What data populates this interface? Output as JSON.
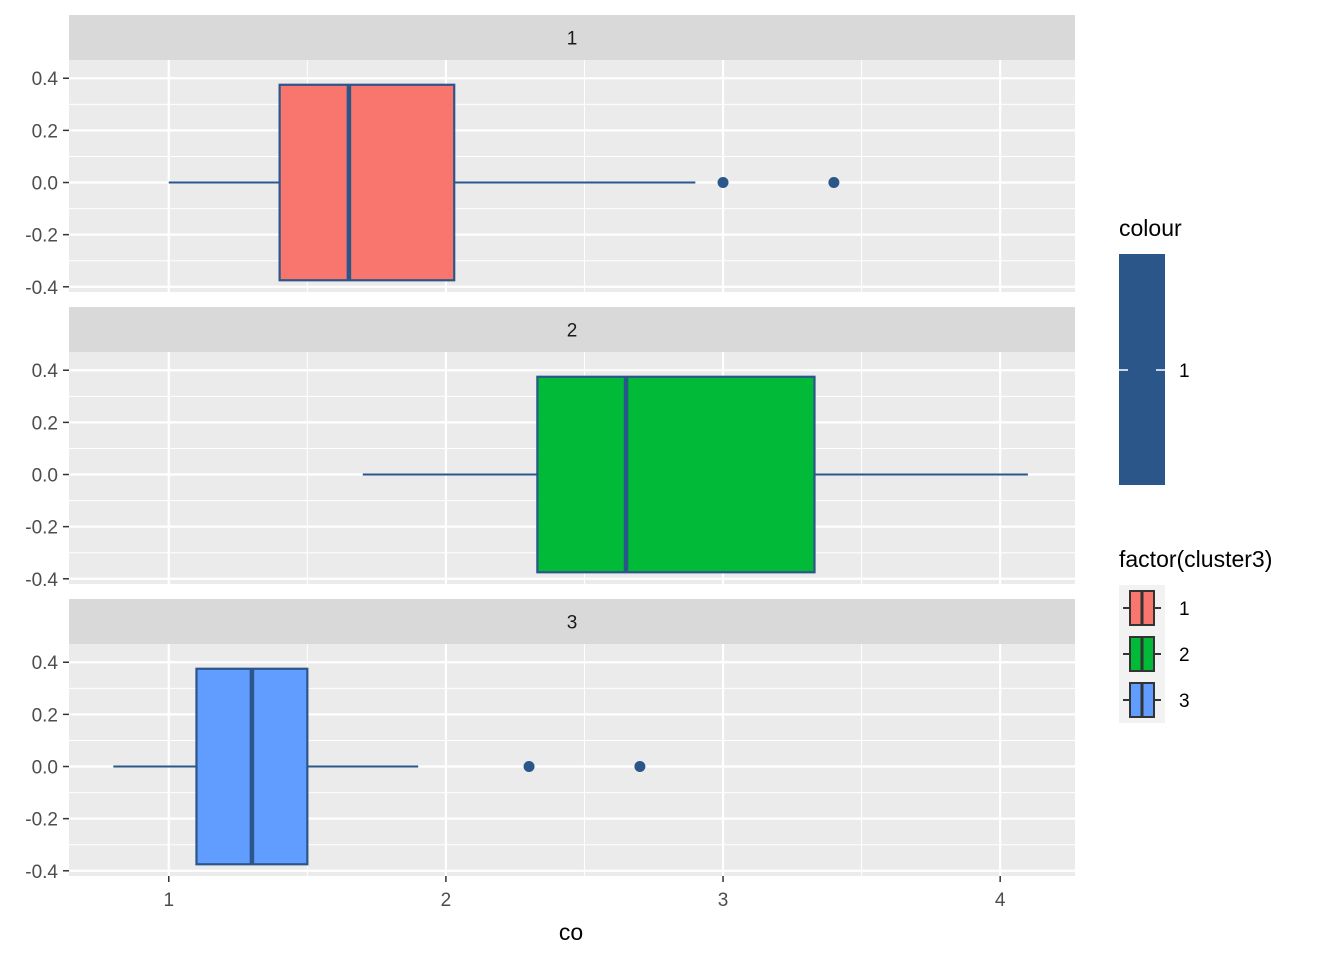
{
  "chart_data": {
    "type": "boxplot",
    "xlabel": "co",
    "ylabel": "",
    "xlim": [
      0.64,
      4.27
    ],
    "ylim": [
      -0.42,
      0.47
    ],
    "x_ticks": [
      1,
      2,
      3,
      4
    ],
    "x_tick_labels": [
      "1",
      "2",
      "3",
      "4"
    ],
    "y_ticks": [
      0.4,
      0.2,
      0.0,
      -0.2,
      -0.4
    ],
    "y_tick_labels": [
      "0.4",
      "0.2",
      "0.0",
      "-0.2",
      "-0.4"
    ],
    "grid": true,
    "box_half_height": 0.375,
    "panels": [
      {
        "strip": "1",
        "cluster": "1",
        "fill": "#F8766D",
        "whisker_low": 1.0,
        "q1": 1.4,
        "median": 1.65,
        "q3": 2.03,
        "whisker_high": 2.9,
        "outliers": [
          3.0,
          3.4
        ]
      },
      {
        "strip": "2",
        "cluster": "2",
        "fill": "#00BA38",
        "whisker_low": 1.7,
        "q1": 2.33,
        "median": 2.65,
        "q3": 3.33,
        "whisker_high": 4.1,
        "outliers": []
      },
      {
        "strip": "3",
        "cluster": "3",
        "fill": "#619CFF",
        "whisker_low": 0.8,
        "q1": 1.1,
        "median": 1.3,
        "q3": 1.5,
        "whisker_high": 1.9,
        "outliers": [
          2.3,
          2.7
        ]
      }
    ],
    "outline_color": "#2B5689",
    "legends": [
      {
        "title": "colour",
        "type": "colorbar",
        "color": "#2B5689",
        "labels": [
          "1"
        ]
      },
      {
        "title": "factor(cluster3)",
        "type": "fill",
        "entries": [
          {
            "label": "1",
            "color": "#F8766D"
          },
          {
            "label": "2",
            "color": "#00BA38"
          },
          {
            "label": "3",
            "color": "#619CFF"
          }
        ]
      }
    ]
  }
}
